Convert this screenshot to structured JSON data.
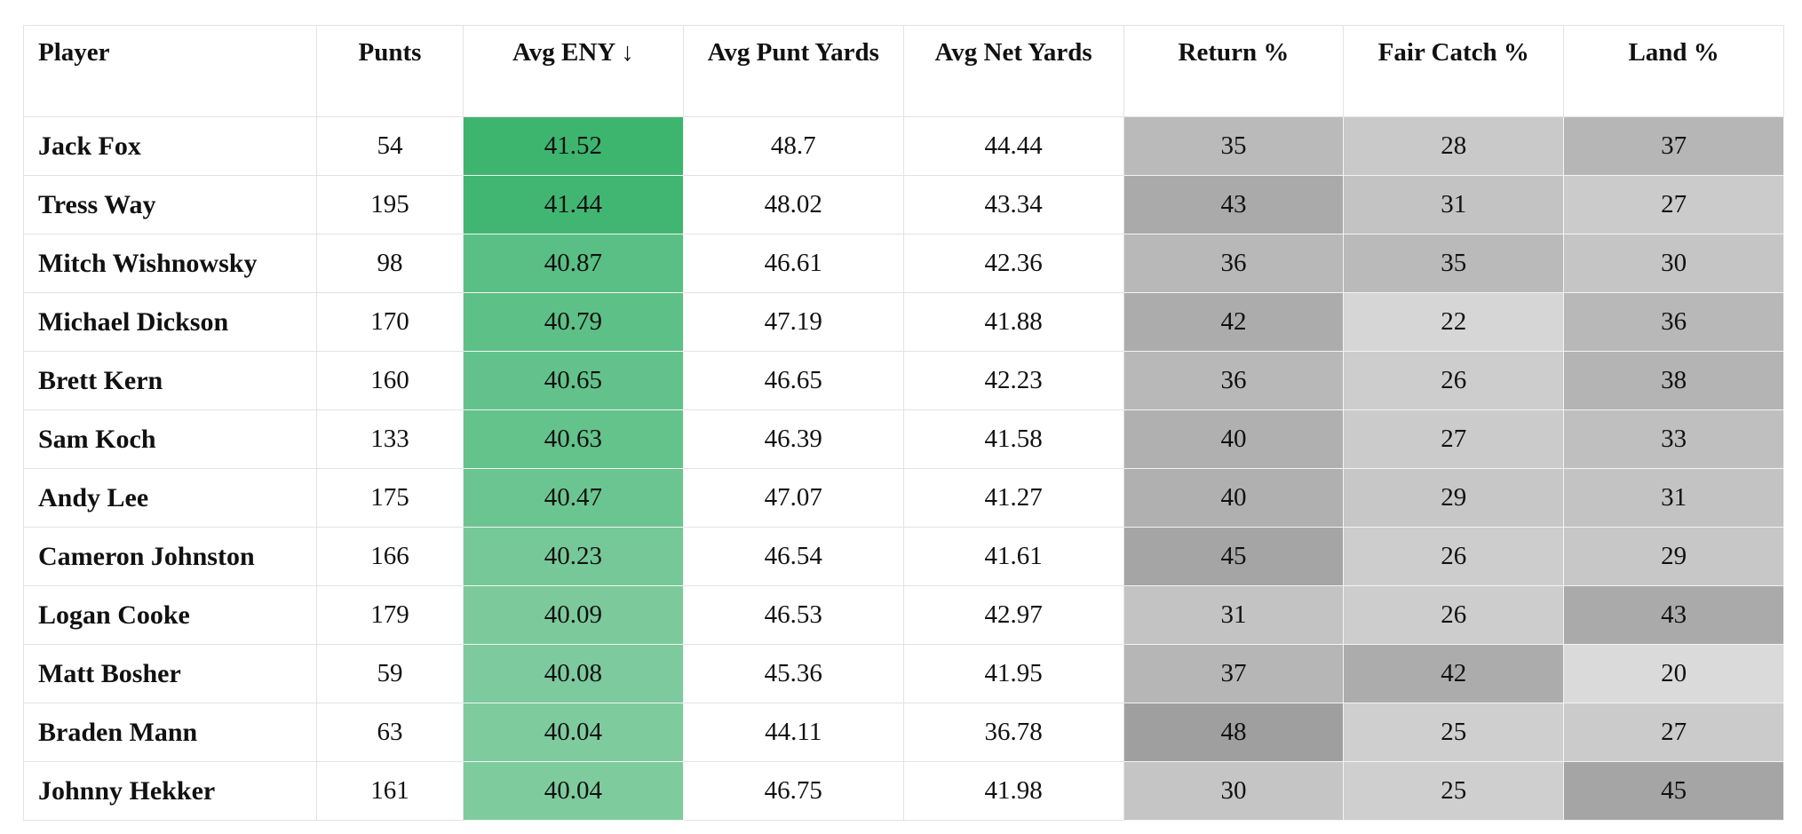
{
  "table": {
    "columns": [
      "Player",
      "Punts",
      "Avg ENY ↓",
      "Avg Punt Yards",
      "Avg Net Yards",
      "Return %",
      "Fair Catch %",
      "Land %"
    ],
    "rows": [
      [
        "Jack Fox",
        "54",
        "41.52",
        "48.7",
        "44.44",
        "35",
        "28",
        "37"
      ],
      [
        "Tress Way",
        "195",
        "41.44",
        "48.02",
        "43.34",
        "43",
        "31",
        "27"
      ],
      [
        "Mitch Wishnowsky",
        "98",
        "40.87",
        "46.61",
        "42.36",
        "36",
        "35",
        "30"
      ],
      [
        "Michael Dickson",
        "170",
        "40.79",
        "47.19",
        "41.88",
        "42",
        "22",
        "36"
      ],
      [
        "Brett Kern",
        "160",
        "40.65",
        "46.65",
        "42.23",
        "36",
        "26",
        "38"
      ],
      [
        "Sam Koch",
        "133",
        "40.63",
        "46.39",
        "41.58",
        "40",
        "27",
        "33"
      ],
      [
        "Andy Lee",
        "175",
        "40.47",
        "47.07",
        "41.27",
        "40",
        "29",
        "31"
      ],
      [
        "Cameron Johnston",
        "166",
        "40.23",
        "46.54",
        "41.61",
        "45",
        "26",
        "29"
      ],
      [
        "Logan Cooke",
        "179",
        "40.09",
        "46.53",
        "42.97",
        "31",
        "26",
        "43"
      ],
      [
        "Matt Bosher",
        "59",
        "40.08",
        "45.36",
        "41.95",
        "37",
        "42",
        "20"
      ],
      [
        "Braden Mann",
        "63",
        "40.04",
        "44.11",
        "36.78",
        "48",
        "25",
        "27"
      ],
      [
        "Johnny Hekker",
        "161",
        "40.04",
        "46.75",
        "41.98",
        "30",
        "25",
        "45"
      ]
    ]
  },
  "shading": {
    "eny_color_scale": [
      "#7ecb9e",
      "#3db56f"
    ],
    "pct_color_scale": [
      "#dadada",
      "#9f9f9f"
    ]
  }
}
